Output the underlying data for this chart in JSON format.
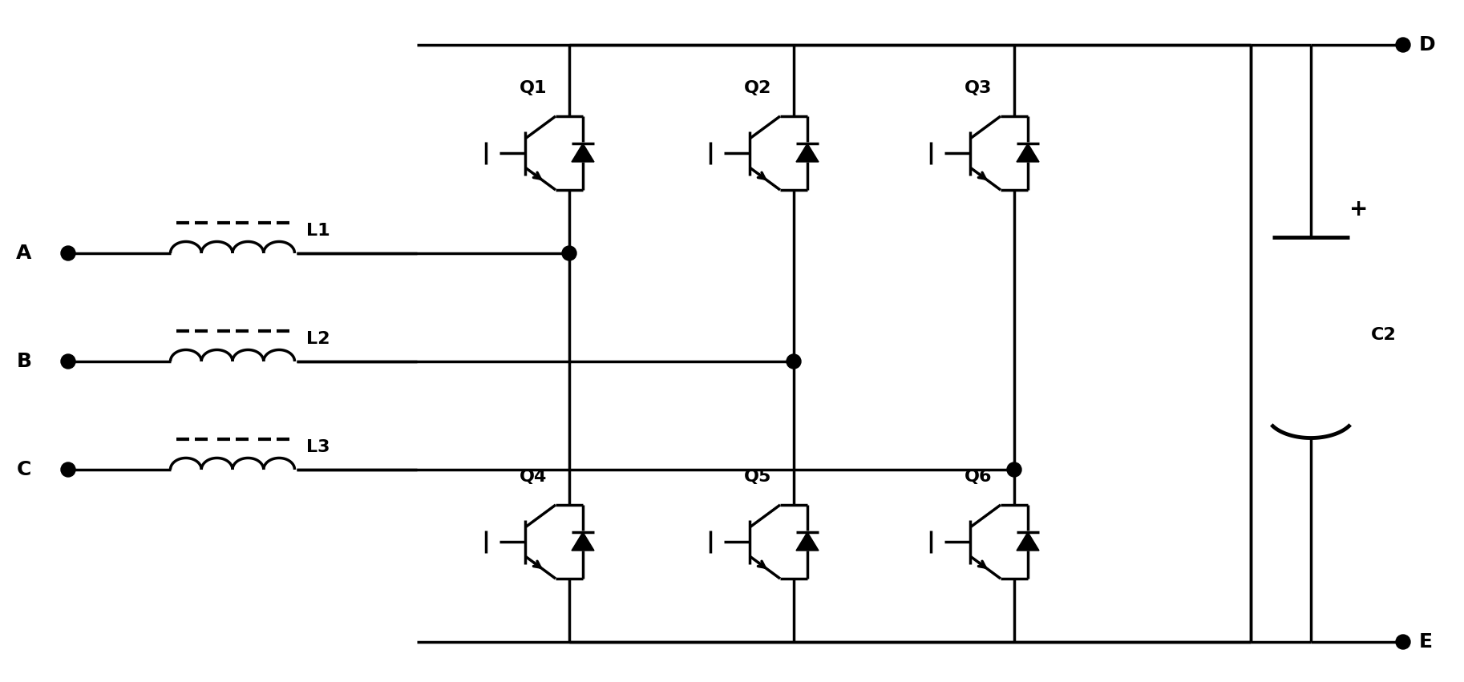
{
  "fig_width": 18.26,
  "fig_height": 8.51,
  "bg_color": "#ffffff",
  "line_color": "#000000",
  "lw": 2.5,
  "lw_thick": 3.0,
  "phases": [
    "A",
    "B",
    "C"
  ],
  "phase_labels": [
    "L1",
    "L2",
    "L3"
  ],
  "transistors_top": [
    "Q1",
    "Q2",
    "Q3"
  ],
  "transistors_bot": [
    "Q4",
    "Q5",
    "Q6"
  ],
  "output_label": "C2",
  "terminal_D": "D",
  "terminal_E": "E",
  "phase_fontsize": 18,
  "label_fontsize": 16,
  "q_fontsize": 16
}
